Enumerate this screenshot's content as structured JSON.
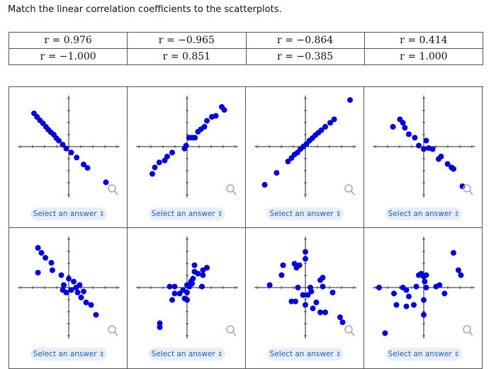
{
  "prompt": "Match the linear correlation coefficients to the scatterplots.",
  "coefficients": [
    [
      "r = 0.976",
      "r = −0.965",
      "r = −0.864",
      "r = 0.414"
    ],
    [
      "r = −1.000",
      "r = 0.851",
      "r = −0.385",
      "r = 1.000"
    ]
  ],
  "select_label": "Select an answer",
  "select_arrow": "⇕",
  "colors": {
    "point": "#0000dd",
    "axis": "#222222",
    "select_bg": "#e8eef7",
    "select_text": "#1a5fb4"
  },
  "plots": [
    [
      [
        -0.7,
        0.67
      ],
      [
        -0.64,
        0.6
      ],
      [
        -0.58,
        0.53
      ],
      [
        -0.52,
        0.47
      ],
      [
        -0.46,
        0.4
      ],
      [
        -0.41,
        0.34
      ],
      [
        -0.36,
        0.29
      ],
      [
        -0.3,
        0.24
      ],
      [
        -0.25,
        0.17
      ],
      [
        -0.2,
        0.12
      ],
      [
        -0.12,
        0.04
      ],
      [
        -0.05,
        -0.04
      ],
      [
        0.05,
        -0.12
      ],
      [
        0.16,
        -0.22
      ],
      [
        0.3,
        -0.36
      ],
      [
        0.38,
        -0.43
      ],
      [
        0.75,
        -0.72
      ]
    ],
    [
      [
        -0.7,
        -0.55
      ],
      [
        -0.65,
        -0.42
      ],
      [
        -0.56,
        -0.32
      ],
      [
        -0.45,
        -0.28
      ],
      [
        -0.4,
        -0.2
      ],
      [
        -0.3,
        -0.12
      ],
      [
        -0.05,
        -0.04
      ],
      [
        -0.02,
        0.02
      ],
      [
        0.04,
        0.18
      ],
      [
        0.1,
        0.18
      ],
      [
        0.16,
        0.18
      ],
      [
        0.22,
        0.3
      ],
      [
        0.28,
        0.35
      ],
      [
        0.35,
        0.4
      ],
      [
        0.4,
        0.52
      ],
      [
        0.5,
        0.6
      ],
      [
        0.58,
        0.62
      ],
      [
        0.7,
        0.8
      ],
      [
        0.75,
        0.74
      ]
    ],
    [
      [
        -0.82,
        -0.77
      ],
      [
        -0.58,
        -0.53
      ],
      [
        -0.35,
        -0.3
      ],
      [
        -0.28,
        -0.23
      ],
      [
        -0.22,
        -0.16
      ],
      [
        -0.16,
        -0.12
      ],
      [
        -0.1,
        -0.05
      ],
      [
        -0.04,
        0.0
      ],
      [
        0.02,
        0.05
      ],
      [
        0.08,
        0.12
      ],
      [
        0.14,
        0.17
      ],
      [
        0.2,
        0.23
      ],
      [
        0.26,
        0.28
      ],
      [
        0.32,
        0.33
      ],
      [
        0.4,
        0.4
      ],
      [
        0.5,
        0.48
      ],
      [
        0.58,
        0.55
      ],
      [
        0.9,
        0.94
      ]
    ],
    [
      [
        -0.62,
        0.4
      ],
      [
        -0.48,
        0.55
      ],
      [
        -0.42,
        0.48
      ],
      [
        -0.38,
        0.38
      ],
      [
        -0.3,
        0.25
      ],
      [
        -0.18,
        0.18
      ],
      [
        -0.1,
        0.02
      ],
      [
        0.0,
        -0.05
      ],
      [
        0.05,
        0.12
      ],
      [
        0.1,
        -0.03
      ],
      [
        0.18,
        -0.05
      ],
      [
        0.3,
        -0.25
      ],
      [
        0.35,
        -0.2
      ],
      [
        0.48,
        -0.35
      ],
      [
        0.56,
        -0.42
      ],
      [
        0.6,
        -0.45
      ],
      [
        0.78,
        -0.8
      ]
    ],
    [
      [
        -0.62,
        0.8
      ],
      [
        -0.55,
        0.7
      ],
      [
        -0.47,
        0.6
      ],
      [
        -0.62,
        0.3
      ],
      [
        -0.35,
        0.5
      ],
      [
        -0.33,
        0.35
      ],
      [
        -0.15,
        0.25
      ],
      [
        -0.1,
        0.05
      ],
      [
        0.0,
        0.18
      ],
      [
        -0.12,
        -0.05
      ],
      [
        -0.05,
        -0.1
      ],
      [
        0.05,
        -0.05
      ],
      [
        0.1,
        0.12
      ],
      [
        0.15,
        0.0
      ],
      [
        0.22,
        0.05
      ],
      [
        0.18,
        -0.1
      ],
      [
        0.25,
        -0.2
      ],
      [
        0.35,
        -0.3
      ],
      [
        0.45,
        -0.35
      ],
      [
        0.55,
        -0.55
      ],
      [
        0.3,
        -0.08
      ]
    ],
    [
      [
        -0.55,
        -0.72
      ],
      [
        -0.55,
        -0.8
      ],
      [
        -0.3,
        -0.25
      ],
      [
        -0.25,
        -0.12
      ],
      [
        -0.35,
        0.02
      ],
      [
        -0.25,
        0.02
      ],
      [
        -0.15,
        -0.12
      ],
      [
        -0.08,
        -0.05
      ],
      [
        -0.05,
        -0.22
      ],
      [
        0.0,
        -0.25
      ],
      [
        0.0,
        0.05
      ],
      [
        0.05,
        0.02
      ],
      [
        0.08,
        0.12
      ],
      [
        0.1,
        0.08
      ],
      [
        0.12,
        0.18
      ],
      [
        0.15,
        0.32
      ],
      [
        0.15,
        0.45
      ],
      [
        0.22,
        0.28
      ],
      [
        0.32,
        0.25
      ],
      [
        0.32,
        0.35
      ],
      [
        0.4,
        0.4
      ],
      [
        0.3,
        0.02
      ],
      [
        0.0,
        -0.1
      ]
    ],
    [
      [
        -0.72,
        0.05
      ],
      [
        -0.48,
        0.25
      ],
      [
        -0.45,
        0.45
      ],
      [
        -0.22,
        0.48
      ],
      [
        -0.18,
        0.4
      ],
      [
        -0.12,
        0.45
      ],
      [
        0.0,
        0.72
      ],
      [
        0.0,
        0.58
      ],
      [
        -0.15,
        0.0
      ],
      [
        -0.2,
        -0.28
      ],
      [
        -0.28,
        -0.28
      ],
      [
        -0.05,
        -0.15
      ],
      [
        0.0,
        -0.35
      ],
      [
        0.05,
        -0.15
      ],
      [
        0.1,
        0.0
      ],
      [
        0.12,
        -0.08
      ],
      [
        0.15,
        -0.42
      ],
      [
        0.22,
        -0.3
      ],
      [
        0.3,
        0.15
      ],
      [
        0.35,
        0.2
      ],
      [
        0.35,
        0.02
      ],
      [
        0.3,
        -0.5
      ],
      [
        0.4,
        -0.5
      ],
      [
        0.55,
        -0.1
      ],
      [
        0.7,
        -0.6
      ],
      [
        0.75,
        -0.7
      ]
    ],
    [
      [
        -0.9,
        0.0
      ],
      [
        -0.78,
        -0.92
      ],
      [
        -0.6,
        -0.12
      ],
      [
        -0.55,
        -0.35
      ],
      [
        -0.42,
        0.0
      ],
      [
        -0.35,
        -0.05
      ],
      [
        -0.35,
        -0.38
      ],
      [
        -0.3,
        -0.18
      ],
      [
        -0.2,
        -0.35
      ],
      [
        -0.15,
        0.02
      ],
      [
        -0.1,
        0.25
      ],
      [
        -0.05,
        0.28
      ],
      [
        0.0,
        0.22
      ],
      [
        0.02,
        0.12
      ],
      [
        0.05,
        0.25
      ],
      [
        0.05,
        0.0
      ],
      [
        0.0,
        -0.25
      ],
      [
        0.0,
        -0.55
      ],
      [
        0.25,
        0.02
      ],
      [
        0.32,
        0.05
      ],
      [
        0.42,
        -0.12
      ],
      [
        0.6,
        0.7
      ],
      [
        0.7,
        0.35
      ],
      [
        0.75,
        0.25
      ]
    ]
  ]
}
